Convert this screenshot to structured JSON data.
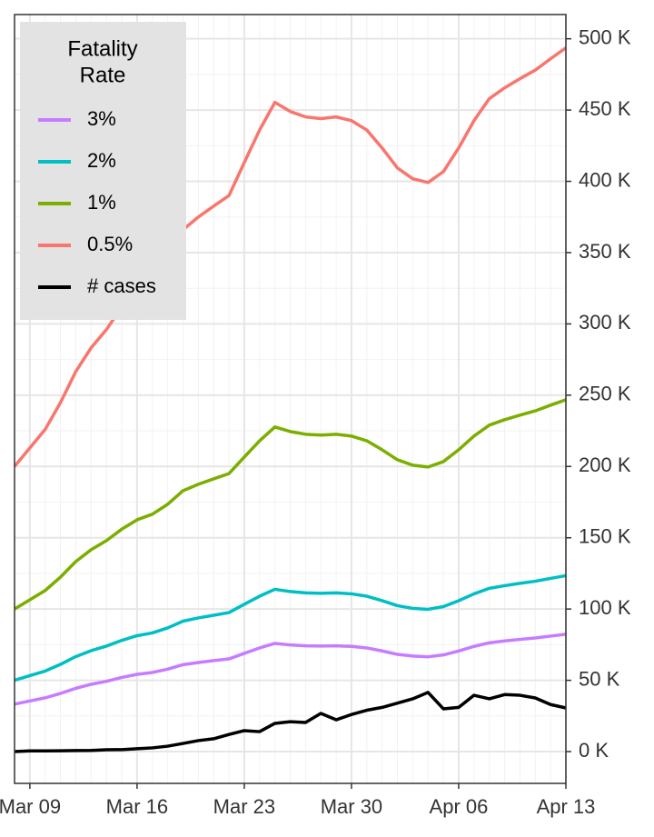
{
  "chart_data": {
    "type": "line",
    "legend_title": [
      "Fatality",
      "Rate"
    ],
    "categories": [
      null,
      "Mar 09",
      null,
      null,
      null,
      null,
      null,
      null,
      "Mar 16",
      null,
      null,
      null,
      null,
      null,
      null,
      "Mar 23",
      null,
      null,
      null,
      null,
      null,
      null,
      "Mar 30",
      null,
      null,
      null,
      null,
      null,
      null,
      "Apr 06",
      null,
      null,
      null,
      null,
      null,
      null,
      "Apr 13"
    ],
    "series": [
      {
        "name": "3%",
        "color": "#c77cff",
        "values": [
          33300,
          35500,
          37700,
          40800,
          44400,
          47200,
          49300,
          52000,
          54200,
          55500,
          57800,
          61000,
          62500,
          63800,
          65000,
          68900,
          72700,
          75900,
          74800,
          74200,
          74000,
          74200,
          73800,
          72700,
          70600,
          68200,
          67000,
          66500,
          67800,
          70600,
          73800,
          76300,
          77600,
          78700,
          79700,
          81000,
          82300
        ]
      },
      {
        "name": "2%",
        "color": "#00bfc4",
        "values": [
          50000,
          53250,
          56500,
          61200,
          66650,
          70800,
          74000,
          78000,
          81300,
          83250,
          86750,
          91500,
          93750,
          95650,
          97500,
          103300,
          109000,
          113850,
          112250,
          111300,
          111000,
          111300,
          110650,
          109000,
          105850,
          102350,
          100450,
          99800,
          101700,
          105850,
          110650,
          114500,
          116400,
          118000,
          119500,
          121500,
          123400
        ]
      },
      {
        "name": "1%",
        "color": "#7cae00",
        "values": [
          100000,
          106500,
          113000,
          122400,
          133300,
          141600,
          148000,
          156000,
          162600,
          166500,
          173500,
          183000,
          187500,
          191300,
          195000,
          206600,
          218000,
          227700,
          224500,
          222600,
          222000,
          222600,
          221300,
          218000,
          211700,
          204700,
          200900,
          199600,
          203400,
          211700,
          221300,
          229000,
          232800,
          236000,
          239000,
          243000,
          246800
        ]
      },
      {
        "name": "0.5%",
        "color": "#f8766d",
        "values": [
          200000,
          213000,
          226000,
          244800,
          266600,
          283200,
          296000,
          312000,
          325200,
          333000,
          347000,
          366000,
          375000,
          382600,
          390000,
          413200,
          436000,
          455400,
          449000,
          445200,
          444000,
          445200,
          442600,
          436000,
          423400,
          409400,
          401800,
          399200,
          406800,
          423400,
          442600,
          458000,
          465600,
          472000,
          478000,
          486000,
          493600
        ]
      },
      {
        "name": "# cases",
        "color": "#000000",
        "values": [
          0,
          500,
          500,
          600,
          700,
          800,
          1300,
          1400,
          2000,
          2600,
          3800,
          5700,
          7700,
          9000,
          12000,
          14700,
          14000,
          19800,
          21000,
          20400,
          26800,
          22300,
          26000,
          29000,
          31000,
          34000,
          37000,
          41500,
          30000,
          31000,
          39500,
          37000,
          40000,
          39500,
          37600,
          33000,
          30600
        ]
      }
    ],
    "ylim": [
      -22300,
      517000
    ],
    "yticks": [
      {
        "value": 0,
        "label": "0 K"
      },
      {
        "value": 50000,
        "label": "50 K"
      },
      {
        "value": 100000,
        "label": "100 K"
      },
      {
        "value": 150000,
        "label": "150 K"
      },
      {
        "value": 200000,
        "label": "200 K"
      },
      {
        "value": 250000,
        "label": "250 K"
      },
      {
        "value": 300000,
        "label": "300 K"
      },
      {
        "value": 350000,
        "label": "350 K"
      },
      {
        "value": 400000,
        "label": "400 K"
      },
      {
        "value": 450000,
        "label": "450 K"
      },
      {
        "value": 500000,
        "label": "500 K"
      }
    ],
    "grid": true
  }
}
